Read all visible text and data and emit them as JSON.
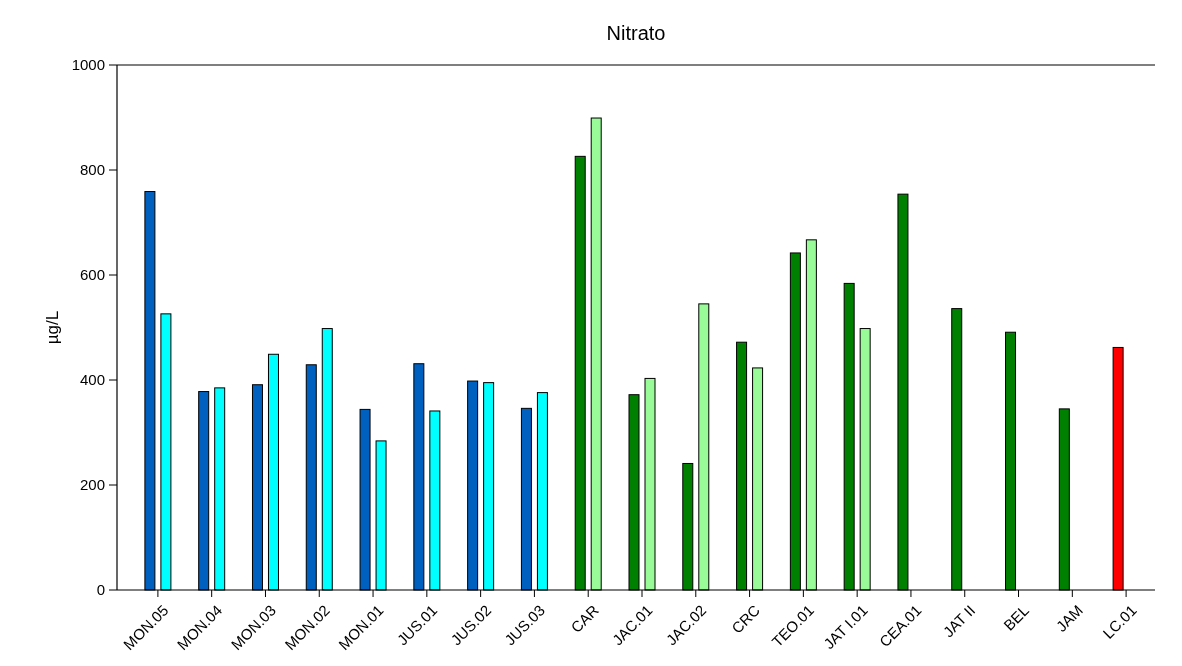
{
  "chart_data": {
    "type": "bar",
    "title": "Nitrato",
    "ylabel": "µg/L",
    "categories": [
      "MON.05",
      "MON.04",
      "MON.03",
      "MON.02",
      "MON.01",
      "JUS.01",
      "JUS.02",
      "JUS.03",
      "CAR",
      "JAC.01",
      "JAC.02",
      "CRC",
      "TEO.01",
      "JAT I.01",
      "CEA.01",
      "JAT II",
      "BEL",
      "JAM",
      "LC.01"
    ],
    "series": [
      {
        "colors": [
          "#0060c0",
          "#0060c0",
          "#0060c0",
          "#0060c0",
          "#0060c0",
          "#0060c0",
          "#0060c0",
          "#0060c0",
          "#008000",
          "#008000",
          "#008000",
          "#008000",
          "#008000",
          "#008000",
          "#008000",
          "#008000",
          "#008000",
          "#008000",
          "#ff0000"
        ],
        "values": [
          759,
          378,
          391,
          429,
          344,
          431,
          398,
          346,
          826,
          372,
          241,
          472,
          642,
          584,
          754,
          536,
          491,
          345,
          462
        ]
      },
      {
        "colors": [
          "#00ffff",
          "#00ffff",
          "#00ffff",
          "#00ffff",
          "#00ffff",
          "#00ffff",
          "#00ffff",
          "#00ffff",
          "#98fb98",
          "#98fb98",
          "#98fb98",
          "#98fb98",
          "#98fb98",
          "#98fb98",
          null,
          null,
          null,
          null,
          null
        ],
        "values": [
          526,
          385,
          449,
          498,
          284,
          341,
          395,
          376,
          899,
          403,
          545,
          423,
          667,
          498,
          null,
          null,
          null,
          null,
          null
        ]
      }
    ],
    "ylim": [
      0,
      1000
    ],
    "yticks": [
      0,
      200,
      400,
      600,
      800,
      1000
    ],
    "grid": false
  }
}
